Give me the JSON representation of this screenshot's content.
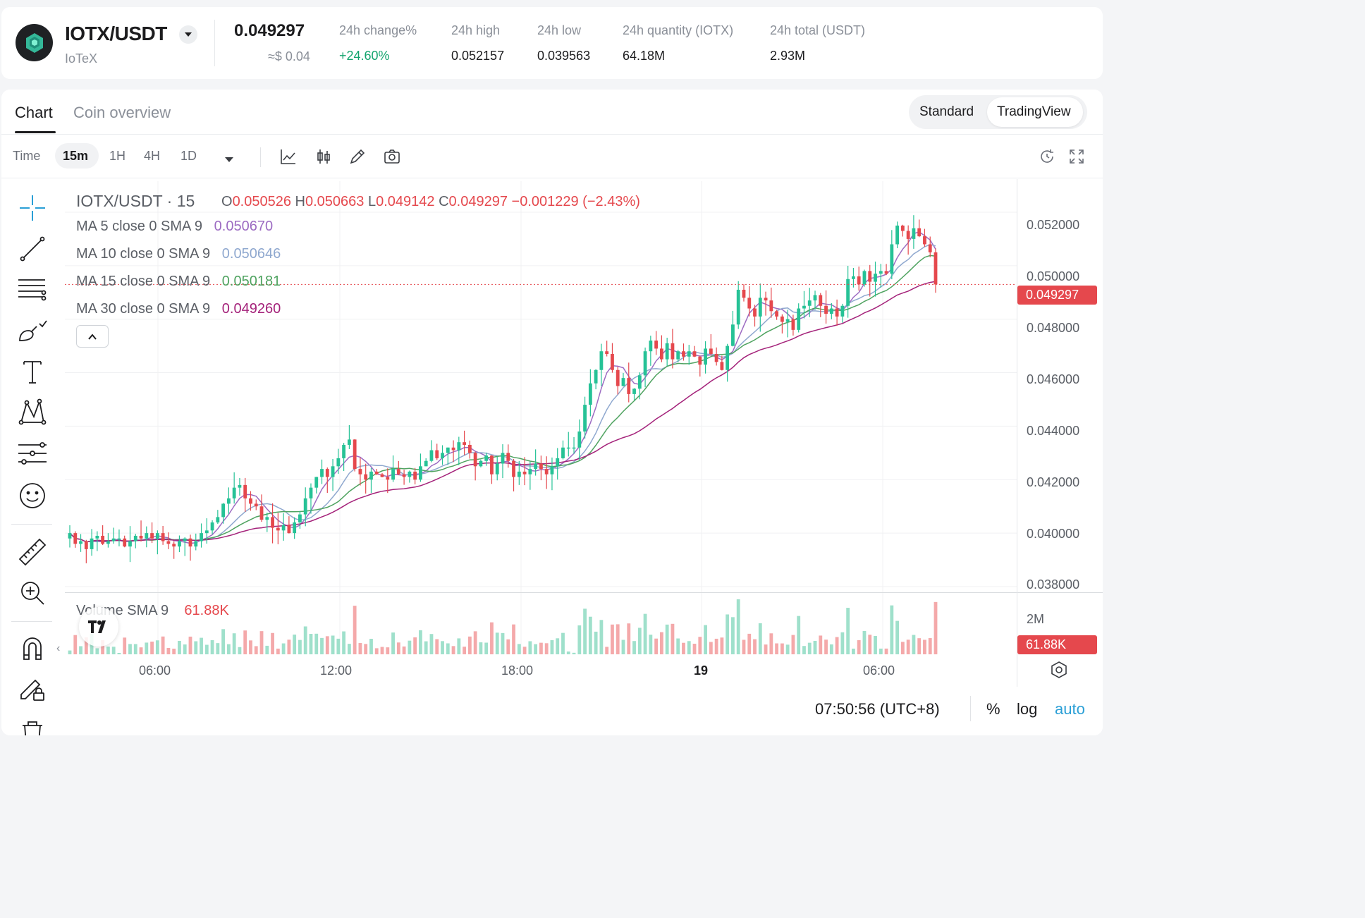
{
  "header": {
    "pair": "IOTX/USDT",
    "coin_name": "IoTeX",
    "last_price": "0.049297",
    "last_price_usd": "≈$ 0.04",
    "stats": [
      {
        "label": "24h change%",
        "value": "+24.60%"
      },
      {
        "label": "24h high",
        "value": "0.052157"
      },
      {
        "label": "24h low",
        "value": "0.039563"
      },
      {
        "label": "24h quantity (IOTX)",
        "value": "64.18M"
      },
      {
        "label": "24h total (USDT)",
        "value": "2.93M"
      }
    ]
  },
  "tabs": [
    {
      "label": "Chart",
      "active": true
    },
    {
      "label": "Coin overview",
      "active": false
    }
  ],
  "view_toggle": {
    "options": [
      "Standard",
      "TradingView"
    ],
    "selected": "TradingView"
  },
  "toolbar": {
    "time_label": "Time",
    "intervals": [
      "15m",
      "1H",
      "4H",
      "1D"
    ],
    "selected_interval": "15m",
    "icons": [
      "indicator-icon",
      "candle-type-icon",
      "draw-icon",
      "screenshot-icon",
      "reset-icon",
      "fullscreen-icon"
    ]
  },
  "left_tools": [
    "crosshair-icon",
    "trend-line-icon",
    "fib-icon",
    "brush-icon",
    "text-icon",
    "pattern-icon",
    "forecast-icon",
    "emoji-icon",
    "ruler-icon",
    "zoom-in-icon",
    "magnet-icon",
    "lock-draw-icon",
    "trash-icon"
  ],
  "legend": {
    "title": "IOTX/USDT · 15",
    "o_key": "O",
    "o": "0.050526",
    "h_key": "H",
    "h": "0.050663",
    "l_key": "L",
    "l": "0.049142",
    "c_key": "C",
    "c": "0.049297",
    "change": "−0.001229 (−2.43%)",
    "ma": [
      {
        "label": "MA 5 close 0 SMA 9",
        "value": "0.050670",
        "color": "#9c6bc2"
      },
      {
        "label": "MA 10 close 0 SMA 9",
        "value": "0.050646",
        "color": "#8fa8cf"
      },
      {
        "label": "MA 15 close 0 SMA 9",
        "value": "0.050181",
        "color": "#4fa360"
      },
      {
        "label": "MA 30 close 0 SMA 9",
        "value": "0.049260",
        "color": "#a4227a"
      }
    ],
    "volume_label": "Volume SMA 9",
    "volume_value": "61.88K"
  },
  "price_axis": {
    "ticks": [
      "0.052000",
      "0.050000",
      "0.048000",
      "0.046000",
      "0.044000",
      "0.042000",
      "0.040000",
      "0.038000"
    ],
    "current_tag": "0.049297"
  },
  "volume_axis": {
    "ticks": [
      "2M"
    ],
    "current_tag": "61.88K"
  },
  "time_axis": {
    "ticks": [
      "06:00",
      "12:00",
      "18:00",
      "19",
      "06:00"
    ]
  },
  "footer": {
    "clock": "07:50:56 (UTC+8)",
    "percent": "%",
    "log": "log",
    "auto": "auto"
  },
  "colors": {
    "up": "#26c296",
    "down": "#e5484d",
    "up_vol": "#9fe0cb",
    "down_vol": "#f4a9aa"
  },
  "chart_data": {
    "type": "candlestick",
    "interval": "15m",
    "y_range": [
      0.038,
      0.0525
    ],
    "closes": [
      0.04,
      0.0396,
      0.0397,
      0.0394,
      0.0398,
      0.0399,
      0.0396,
      0.0397,
      0.0398,
      0.0398,
      0.0395,
      0.0397,
      0.0399,
      0.0398,
      0.04,
      0.0398,
      0.04,
      0.0397,
      0.0396,
      0.0395,
      0.0397,
      0.0398,
      0.0395,
      0.0397,
      0.04,
      0.0401,
      0.0404,
      0.0406,
      0.0411,
      0.0413,
      0.0417,
      0.0418,
      0.0413,
      0.0411,
      0.041,
      0.0405,
      0.0406,
      0.0402,
      0.0401,
      0.0403,
      0.04,
      0.0404,
      0.0407,
      0.0413,
      0.0417,
      0.0421,
      0.0424,
      0.0421,
      0.0425,
      0.0428,
      0.0433,
      0.0435,
      0.0424,
      0.0422,
      0.042,
      0.0423,
      0.0422,
      0.0421,
      0.042,
      0.0424,
      0.0422,
      0.0421,
      0.0423,
      0.042,
      0.0425,
      0.0427,
      0.0431,
      0.0428,
      0.043,
      0.0432,
      0.0431,
      0.0434,
      0.0433,
      0.043,
      0.0425,
      0.0427,
      0.0429,
      0.0422,
      0.0426,
      0.043,
      0.0427,
      0.0421,
      0.0423,
      0.0422,
      0.0424,
      0.0426,
      0.0424,
      0.0422,
      0.0425,
      0.0428,
      0.0432,
      0.0432,
      0.0432,
      0.0438,
      0.0448,
      0.0456,
      0.0461,
      0.0468,
      0.0467,
      0.0461,
      0.0455,
      0.0458,
      0.0452,
      0.0454,
      0.0459,
      0.0468,
      0.0472,
      0.0469,
      0.0465,
      0.0471,
      0.0465,
      0.0468,
      0.0466,
      0.0468,
      0.0466,
      0.0463,
      0.0469,
      0.0467,
      0.0464,
      0.0461,
      0.047,
      0.0478,
      0.0491,
      0.0488,
      0.0484,
      0.0481,
      0.0488,
      0.0487,
      0.0483,
      0.0481,
      0.0479,
      0.048,
      0.0476,
      0.0484,
      0.0485,
      0.0487,
      0.0489,
      0.0485,
      0.0482,
      0.0484,
      0.0481,
      0.0485,
      0.0495,
      0.0496,
      0.0493,
      0.0498,
      0.0494,
      0.0497,
      0.0498,
      0.0497,
      0.0508,
      0.0515,
      0.0513,
      0.051,
      0.0514,
      0.0511,
      0.0508,
      0.0505,
      0.0493
    ]
  }
}
